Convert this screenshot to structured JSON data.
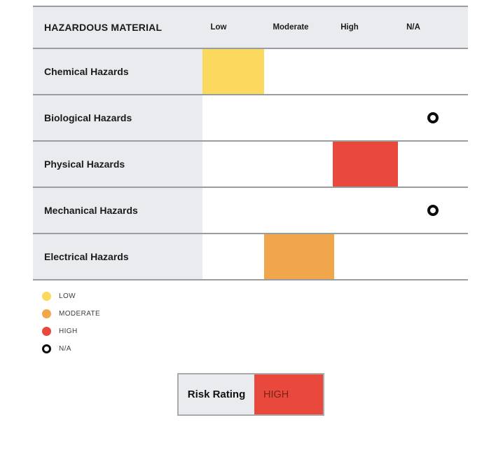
{
  "colors": {
    "low": "#FBD85E",
    "moderate": "#F1A64C",
    "high": "#E8493C",
    "ring": "#0C0C0C",
    "cell_bg": "#E9EBEE",
    "line": "#9A9DA0",
    "risk_border": "#ABABAB",
    "risk_value_text": "#7A2119"
  },
  "table": {
    "header": {
      "title": "HAZARDOUS MATERIAL",
      "columns": [
        "Low",
        "Moderate",
        "High",
        "N/A"
      ]
    },
    "rows": [
      {
        "label": "Chemical Hazards",
        "rating": "low"
      },
      {
        "label": "Biological Hazards",
        "rating": "na"
      },
      {
        "label": "Physical Hazards",
        "rating": "high"
      },
      {
        "label": "Mechanical Hazards",
        "rating": "na"
      },
      {
        "label": "Electrical Hazards",
        "rating": "moderate"
      }
    ]
  },
  "legend": {
    "items": [
      {
        "label": "LOW",
        "shape": "circle",
        "color": "#FBD85E"
      },
      {
        "label": "MODERATE",
        "shape": "circle",
        "color": "#F1A64C"
      },
      {
        "label": "HIGH",
        "shape": "circle",
        "color": "#E8493C"
      },
      {
        "label": "N/A",
        "shape": "ring",
        "color": "#0C0C0C"
      }
    ]
  },
  "risk": {
    "label": "Risk Rating",
    "value": "HIGH"
  },
  "chart_data": {
    "type": "table",
    "title": "HAZARDOUS MATERIAL",
    "columns": [
      "Low",
      "Moderate",
      "High",
      "N/A"
    ],
    "rows": [
      {
        "category": "Chemical Hazards",
        "rating": "Low"
      },
      {
        "category": "Biological Hazards",
        "rating": "N/A"
      },
      {
        "category": "Physical Hazards",
        "rating": "High"
      },
      {
        "category": "Mechanical Hazards",
        "rating": "N/A"
      },
      {
        "category": "Electrical Hazards",
        "rating": "Moderate"
      }
    ],
    "legend_entries": [
      "LOW",
      "MODERATE",
      "HIGH",
      "N/A"
    ],
    "legend_position": "bottom-left",
    "overall": {
      "label": "Risk Rating",
      "value": "HIGH"
    }
  }
}
